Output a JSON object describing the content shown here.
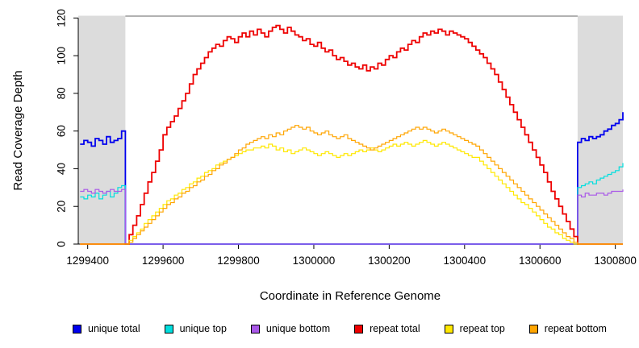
{
  "chart_data": {
    "type": "line",
    "title": "",
    "xlabel": "Coordinate in Reference Genome",
    "ylabel": "Read Coverage Depth",
    "xlim": [
      1299375,
      1300820
    ],
    "ylim": [
      0,
      121
    ],
    "x_ticks": [
      1299400,
      1299600,
      1299800,
      1300000,
      1300200,
      1300400,
      1300600,
      1300800
    ],
    "y_ticks": [
      0,
      20,
      40,
      60,
      80,
      100,
      120
    ],
    "grid": "off",
    "legend_position": "bottom",
    "shaded_regions": [
      {
        "x0": 1299375,
        "x1": 1299500,
        "color": "#dcdcdc"
      },
      {
        "x0": 1300700,
        "x1": 1300820,
        "color": "#dcdcdc"
      }
    ],
    "x_start": 1299380,
    "x_step": 10,
    "series": [
      {
        "name": "unique total",
        "color": "#0000ee",
        "width": 1.8,
        "values": [
          53,
          55,
          54,
          52,
          56,
          55,
          53,
          57,
          54,
          55,
          56,
          60,
          0,
          0,
          0,
          0,
          0,
          0,
          0,
          0,
          0,
          0,
          0,
          0,
          0,
          0,
          0,
          0,
          0,
          0,
          0,
          0,
          0,
          0,
          0,
          0,
          0,
          0,
          0,
          0,
          0,
          0,
          0,
          0,
          0,
          0,
          0,
          0,
          0,
          0,
          0,
          0,
          0,
          0,
          0,
          0,
          0,
          0,
          0,
          0,
          0,
          0,
          0,
          0,
          0,
          0,
          0,
          0,
          0,
          0,
          0,
          0,
          0,
          0,
          0,
          0,
          0,
          0,
          0,
          0,
          0,
          0,
          0,
          0,
          0,
          0,
          0,
          0,
          0,
          0,
          0,
          0,
          0,
          0,
          0,
          0,
          0,
          0,
          0,
          0,
          0,
          0,
          0,
          0,
          0,
          0,
          0,
          0,
          0,
          0,
          0,
          0,
          0,
          0,
          0,
          0,
          0,
          0,
          0,
          0,
          0,
          0,
          0,
          0,
          0,
          0,
          0,
          0,
          0,
          0,
          0,
          0,
          54,
          56,
          55,
          57,
          56,
          57,
          58,
          60,
          61,
          63,
          64,
          66,
          70
        ]
      },
      {
        "name": "unique top",
        "color": "#00dede",
        "width": 1.2,
        "values": [
          25,
          24,
          26,
          25,
          27,
          24,
          26,
          28,
          25,
          27,
          30,
          31,
          0,
          0,
          0,
          0,
          0,
          0,
          0,
          0,
          0,
          0,
          0,
          0,
          0,
          0,
          0,
          0,
          0,
          0,
          0,
          0,
          0,
          0,
          0,
          0,
          0,
          0,
          0,
          0,
          0,
          0,
          0,
          0,
          0,
          0,
          0,
          0,
          0,
          0,
          0,
          0,
          0,
          0,
          0,
          0,
          0,
          0,
          0,
          0,
          0,
          0,
          0,
          0,
          0,
          0,
          0,
          0,
          0,
          0,
          0,
          0,
          0,
          0,
          0,
          0,
          0,
          0,
          0,
          0,
          0,
          0,
          0,
          0,
          0,
          0,
          0,
          0,
          0,
          0,
          0,
          0,
          0,
          0,
          0,
          0,
          0,
          0,
          0,
          0,
          0,
          0,
          0,
          0,
          0,
          0,
          0,
          0,
          0,
          0,
          0,
          0,
          0,
          0,
          0,
          0,
          0,
          0,
          0,
          0,
          0,
          0,
          0,
          0,
          0,
          0,
          0,
          0,
          0,
          0,
          0,
          0,
          30,
          31,
          32,
          33,
          32,
          34,
          35,
          36,
          37,
          38,
          39,
          41,
          43
        ]
      },
      {
        "name": "unique bottom",
        "color": "#a958e8",
        "width": 1.2,
        "values": [
          28,
          29,
          28,
          27,
          29,
          28,
          27,
          28,
          29,
          28,
          28,
          29,
          0,
          0,
          0,
          0,
          0,
          0,
          0,
          0,
          0,
          0,
          0,
          0,
          0,
          0,
          0,
          0,
          0,
          0,
          0,
          0,
          0,
          0,
          0,
          0,
          0,
          0,
          0,
          0,
          0,
          0,
          0,
          0,
          0,
          0,
          0,
          0,
          0,
          0,
          0,
          0,
          0,
          0,
          0,
          0,
          0,
          0,
          0,
          0,
          0,
          0,
          0,
          0,
          0,
          0,
          0,
          0,
          0,
          0,
          0,
          0,
          0,
          0,
          0,
          0,
          0,
          0,
          0,
          0,
          0,
          0,
          0,
          0,
          0,
          0,
          0,
          0,
          0,
          0,
          0,
          0,
          0,
          0,
          0,
          0,
          0,
          0,
          0,
          0,
          0,
          0,
          0,
          0,
          0,
          0,
          0,
          0,
          0,
          0,
          0,
          0,
          0,
          0,
          0,
          0,
          0,
          0,
          0,
          0,
          0,
          0,
          0,
          0,
          0,
          0,
          0,
          0,
          0,
          0,
          0,
          0,
          26,
          25,
          27,
          26,
          26,
          27,
          27,
          26,
          27,
          28,
          28,
          28,
          29
        ]
      },
      {
        "name": "repeat total",
        "color": "#ee0000",
        "width": 1.8,
        "values": [
          0,
          0,
          0,
          0,
          0,
          0,
          0,
          0,
          0,
          0,
          0,
          0,
          0,
          5,
          10,
          15,
          21,
          27,
          33,
          38,
          44,
          50,
          58,
          62,
          65,
          68,
          72,
          76,
          80,
          85,
          90,
          93,
          96,
          99,
          102,
          104,
          106,
          105,
          108,
          110,
          109,
          107,
          110,
          112,
          110,
          113,
          111,
          114,
          112,
          110,
          113,
          115,
          116,
          114,
          112,
          115,
          113,
          111,
          110,
          108,
          109,
          106,
          105,
          107,
          104,
          102,
          103,
          100,
          98,
          99,
          97,
          95,
          96,
          94,
          93,
          95,
          92,
          94,
          93,
          96,
          95,
          98,
          100,
          99,
          102,
          104,
          103,
          106,
          108,
          107,
          110,
          112,
          111,
          113,
          112,
          114,
          113,
          111,
          113,
          112,
          111,
          110,
          109,
          107,
          105,
          103,
          101,
          99,
          96,
          93,
          90,
          86,
          82,
          78,
          74,
          70,
          66,
          62,
          58,
          54,
          50,
          46,
          42,
          38,
          33,
          28,
          24,
          20,
          16,
          12,
          8,
          4,
          0,
          0,
          0,
          0,
          0,
          0,
          0,
          0,
          0,
          0,
          0,
          0,
          0
        ]
      },
      {
        "name": "repeat top",
        "color": "#ffe800",
        "width": 1.2,
        "values": [
          0,
          0,
          0,
          0,
          0,
          0,
          0,
          0,
          0,
          0,
          0,
          0,
          0,
          2,
          4,
          6,
          8,
          11,
          13,
          15,
          17,
          19,
          21,
          23,
          24,
          26,
          27,
          29,
          30,
          32,
          33,
          35,
          36,
          38,
          39,
          40,
          42,
          43,
          44,
          45,
          46,
          47,
          48,
          49,
          50,
          50,
          51,
          51,
          52,
          51,
          53,
          52,
          50,
          51,
          49,
          50,
          48,
          49,
          50,
          51,
          50,
          49,
          48,
          47,
          48,
          49,
          48,
          47,
          46,
          47,
          48,
          47,
          48,
          49,
          50,
          49,
          50,
          51,
          50,
          49,
          50,
          51,
          52,
          53,
          52,
          53,
          54,
          53,
          52,
          53,
          54,
          55,
          54,
          53,
          52,
          53,
          54,
          53,
          52,
          51,
          50,
          49,
          48,
          47,
          46,
          46,
          44,
          42,
          40,
          38,
          36,
          34,
          32,
          30,
          28,
          26,
          24,
          22,
          21,
          19,
          17,
          15,
          13,
          11,
          9,
          8,
          6,
          5,
          3,
          2,
          1,
          0,
          0,
          0,
          0,
          0,
          0,
          0,
          0,
          0,
          0,
          0,
          0,
          0,
          0
        ]
      },
      {
        "name": "repeat bottom",
        "color": "#ffa500",
        "width": 1.2,
        "values": [
          0,
          0,
          0,
          0,
          0,
          0,
          0,
          0,
          0,
          0,
          0,
          0,
          0,
          1,
          3,
          5,
          7,
          9,
          11,
          13,
          15,
          17,
          19,
          21,
          22,
          24,
          25,
          27,
          28,
          30,
          31,
          33,
          34,
          36,
          37,
          39,
          40,
          42,
          43,
          45,
          46,
          48,
          50,
          51,
          53,
          54,
          55,
          56,
          57,
          56,
          58,
          57,
          59,
          58,
          60,
          61,
          62,
          63,
          62,
          61,
          62,
          60,
          59,
          58,
          59,
          60,
          58,
          57,
          56,
          57,
          58,
          56,
          55,
          54,
          53,
          52,
          51,
          50,
          51,
          52,
          53,
          54,
          55,
          56,
          57,
          58,
          59,
          60,
          61,
          62,
          61,
          62,
          61,
          60,
          59,
          60,
          61,
          60,
          59,
          58,
          57,
          56,
          55,
          54,
          53,
          52,
          50,
          48,
          46,
          44,
          42,
          40,
          38,
          36,
          34,
          32,
          30,
          28,
          26,
          24,
          22,
          20,
          18,
          16,
          14,
          12,
          10,
          8,
          6,
          4,
          3,
          1,
          0,
          0,
          0,
          0,
          0,
          0,
          0,
          0,
          0,
          0,
          0,
          0,
          0
        ]
      }
    ]
  }
}
